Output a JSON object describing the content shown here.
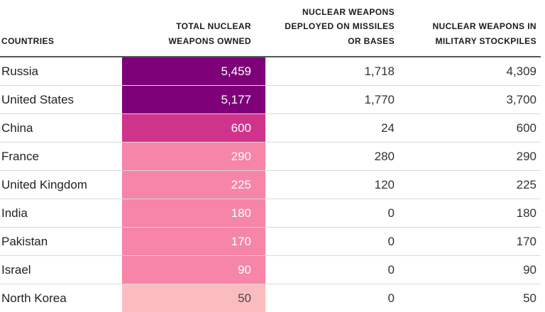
{
  "headers": {
    "country": "COUNTRIES",
    "total_l1": "TOTAL NUCLEAR",
    "total_l2": "WEAPONS OWNED",
    "deployed_l1": "NUCLEAR WEAPONS",
    "deployed_l2": "DEPLOYED ON MISSILES",
    "deployed_l3": "OR BASES",
    "stock_l1": "NUCLEAR WEAPONS IN",
    "stock_l2": "MILITARY STOCKPILES"
  },
  "colors": {
    "tier_dark": "#7d0078",
    "tier_mid": "#d0338c",
    "tier_light": "#f785a8",
    "tier_pale": "#fbbcbf"
  },
  "chart_data": {
    "type": "table",
    "columns": [
      "COUNTRIES",
      "TOTAL NUCLEAR WEAPONS OWNED",
      "NUCLEAR WEAPONS DEPLOYED ON MISSILES OR BASES",
      "NUCLEAR WEAPONS IN MILITARY STOCKPILES"
    ],
    "rows": [
      {
        "country": "Russia",
        "total": "5,459",
        "deployed": "1,718",
        "stockpile": "4,309",
        "value": 5459,
        "tier": "tier_dark"
      },
      {
        "country": "United States",
        "total": "5,177",
        "deployed": "1,770",
        "stockpile": "3,700",
        "value": 5177,
        "tier": "tier_dark"
      },
      {
        "country": "China",
        "total": "600",
        "deployed": "24",
        "stockpile": "600",
        "value": 600,
        "tier": "tier_mid"
      },
      {
        "country": "France",
        "total": "290",
        "deployed": "280",
        "stockpile": "290",
        "value": 290,
        "tier": "tier_light"
      },
      {
        "country": "United Kingdom",
        "total": "225",
        "deployed": "120",
        "stockpile": "225",
        "value": 225,
        "tier": "tier_light"
      },
      {
        "country": "India",
        "total": "180",
        "deployed": "0",
        "stockpile": "180",
        "value": 180,
        "tier": "tier_light"
      },
      {
        "country": "Pakistan",
        "total": "170",
        "deployed": "0",
        "stockpile": "170",
        "value": 170,
        "tier": "tier_light"
      },
      {
        "country": "Israel",
        "total": "90",
        "deployed": "0",
        "stockpile": "90",
        "value": 90,
        "tier": "tier_light"
      },
      {
        "country": "North Korea",
        "total": "50",
        "deployed": "0",
        "stockpile": "50",
        "value": 50,
        "tier": "tier_pale"
      }
    ]
  }
}
